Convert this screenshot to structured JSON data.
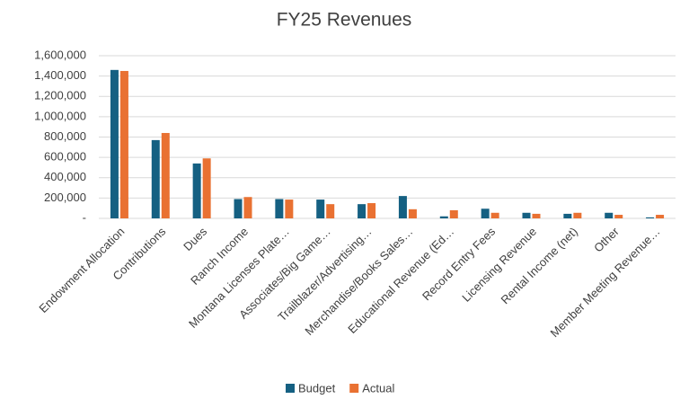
{
  "chart_data": {
    "type": "bar",
    "title": "FY25 Revenues",
    "categories": [
      "Endowment Allocation",
      "Contributions",
      "Dues",
      "Ranch Income",
      "Montana Licenses Plate…",
      "Associates/Big Game…",
      "Trailblazer/Advertising…",
      "Merchandise/Books Sales…",
      "Educational Revenue (Ed…",
      "Record Entry Fees",
      "Licensing Revenue",
      "Rental Income (net)",
      "Other",
      "Member Meeting Revenue…"
    ],
    "series": [
      {
        "name": "Budget",
        "color": "#156082",
        "values": [
          1460000,
          770000,
          540000,
          190000,
          190000,
          185000,
          140000,
          220000,
          20000,
          95000,
          55000,
          45000,
          55000,
          10000
        ]
      },
      {
        "name": "Actual",
        "color": "#E97132",
        "values": [
          1450000,
          840000,
          590000,
          210000,
          185000,
          140000,
          150000,
          90000,
          80000,
          55000,
          45000,
          55000,
          35000,
          35000
        ]
      }
    ],
    "ylim": [
      0,
      1600000
    ],
    "yticks": [
      {
        "value": 0,
        "label": "-"
      },
      {
        "value": 200000,
        "label": "200,000"
      },
      {
        "value": 400000,
        "label": "400,000"
      },
      {
        "value": 600000,
        "label": "600,000"
      },
      {
        "value": 800000,
        "label": "800,000"
      },
      {
        "value": 1000000,
        "label": "1,000,000"
      },
      {
        "value": 1200000,
        "label": "1,200,000"
      },
      {
        "value": 1400000,
        "label": "1,400,000"
      },
      {
        "value": 1600000,
        "label": "1,600,000"
      }
    ],
    "grid": true,
    "legend": "bottom"
  }
}
